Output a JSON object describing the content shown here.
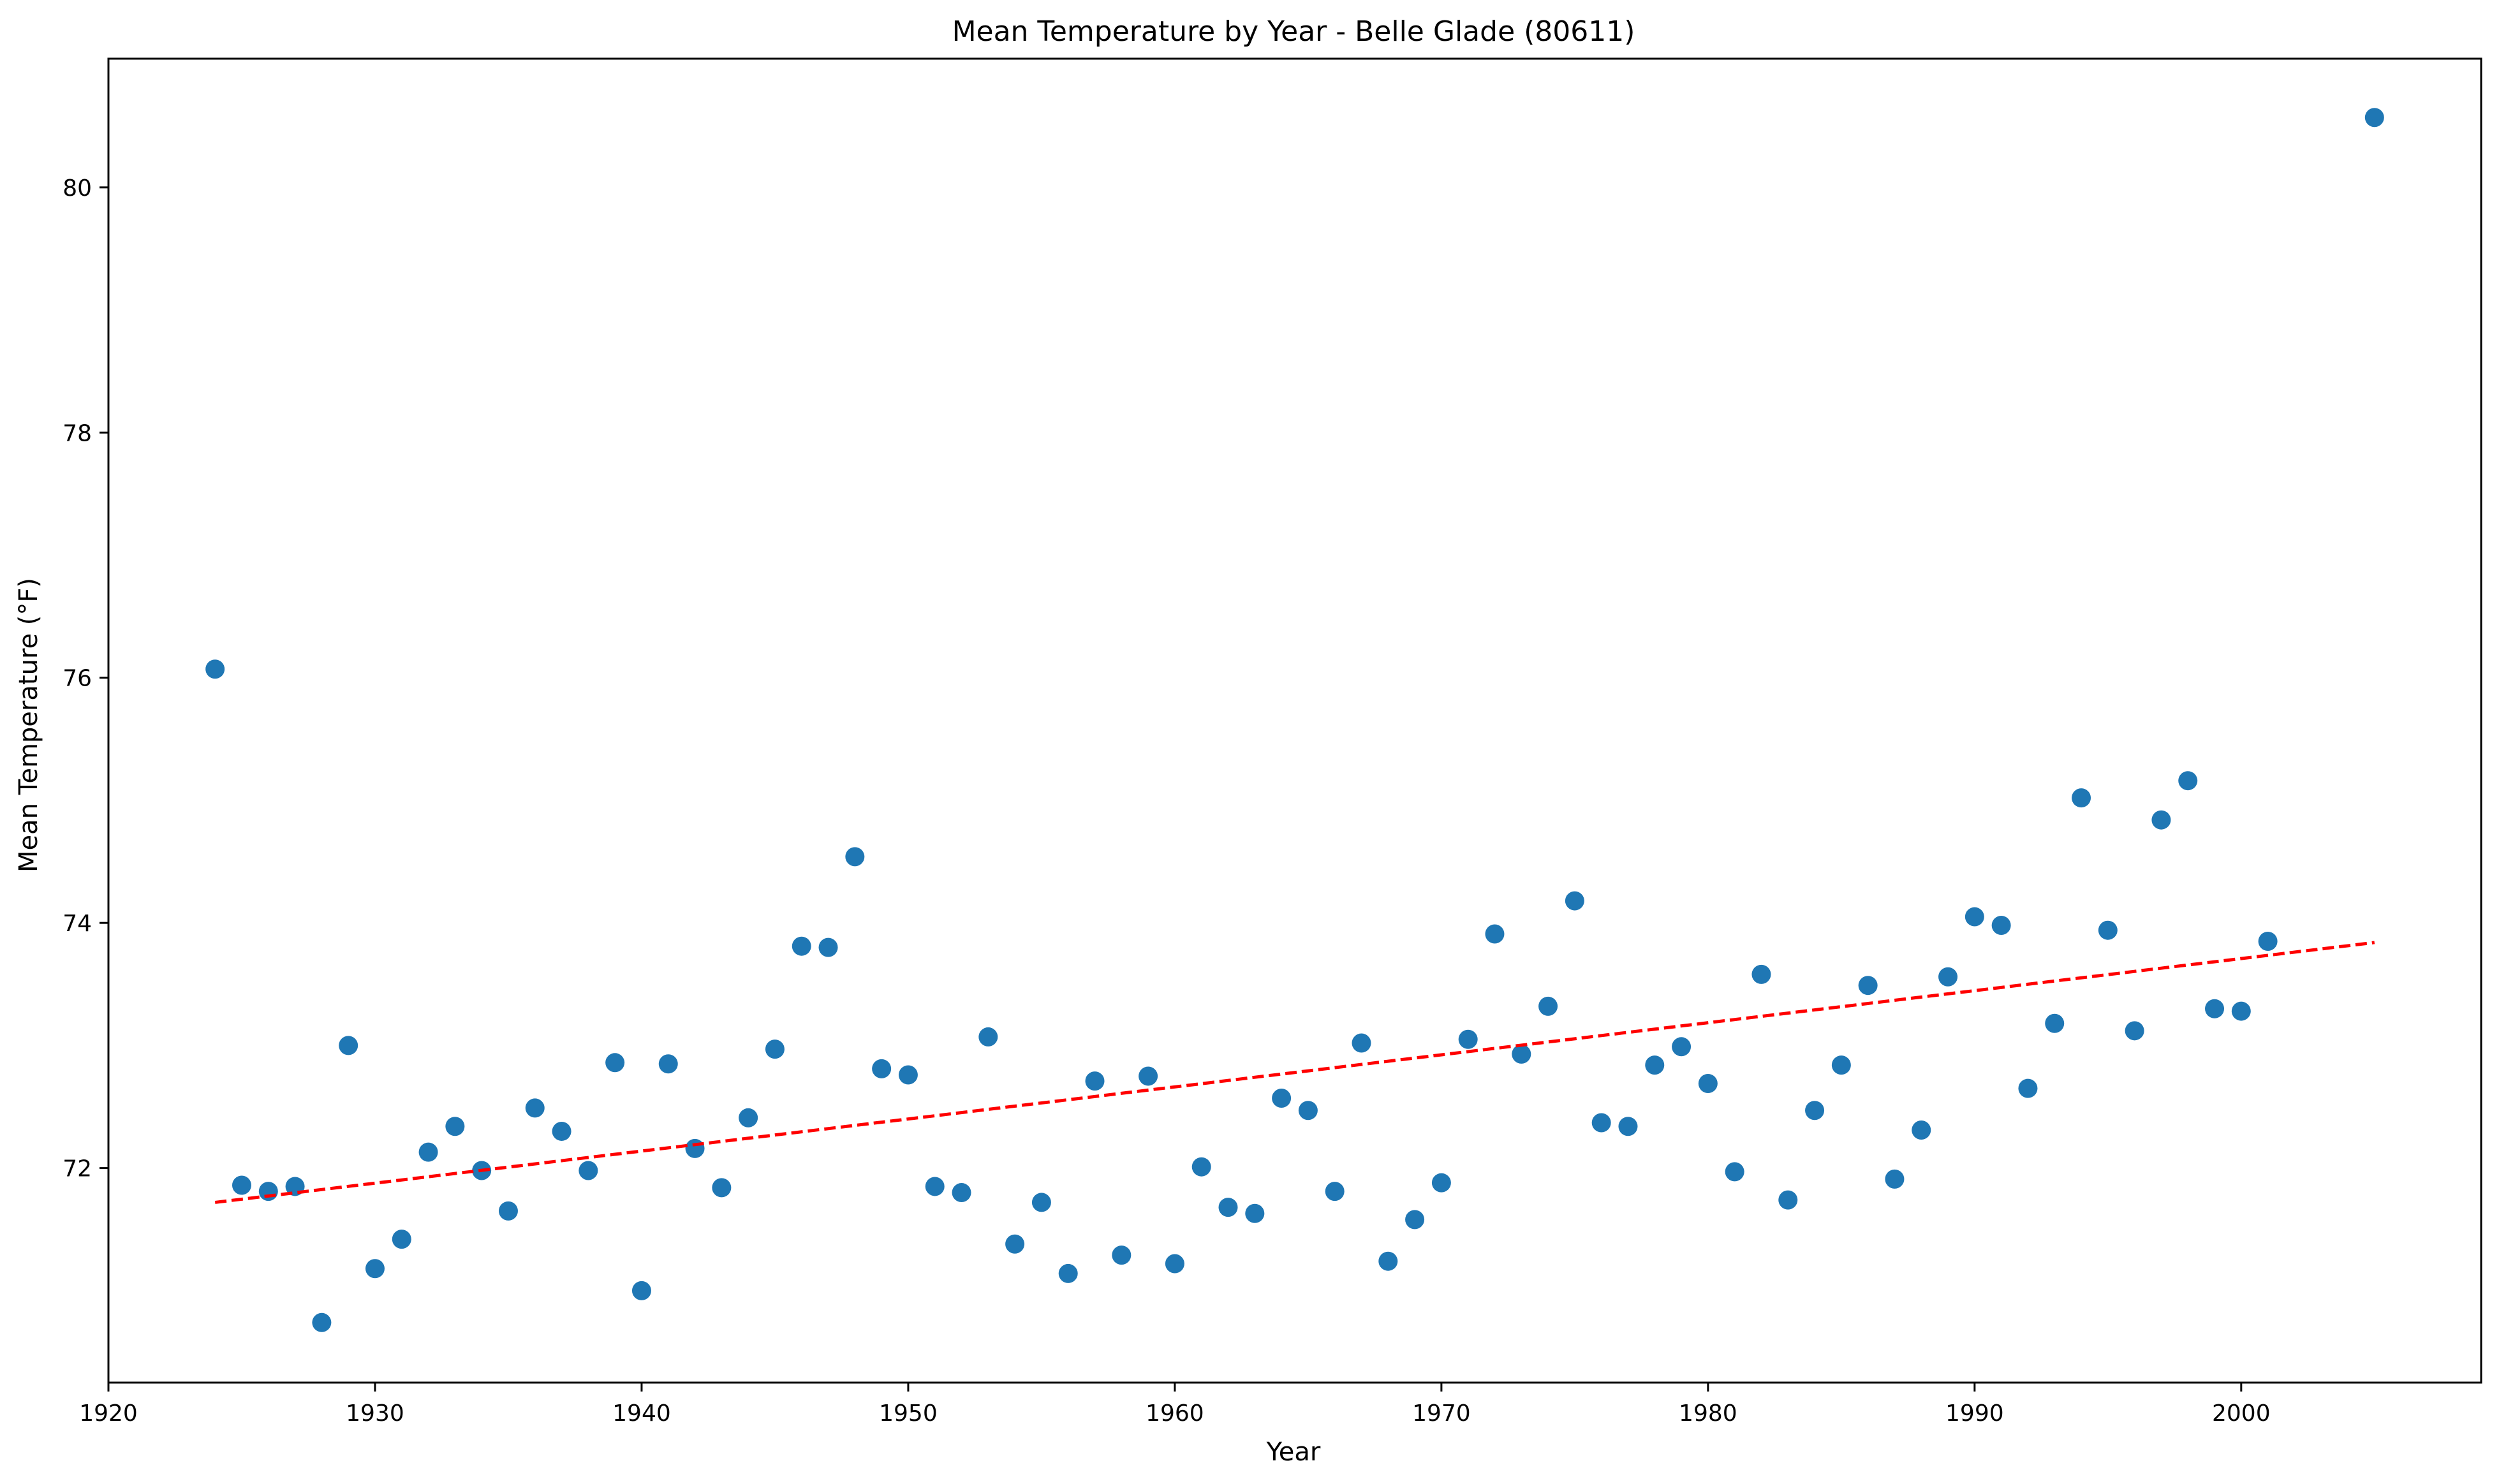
{
  "chart_data": {
    "type": "scatter",
    "title": "Mean Temperature by Year - Belle Glade (80611)",
    "xlabel": "Year",
    "ylabel": "Mean Temperature (°F)",
    "xlim": [
      1920,
      2009
    ],
    "ylim": [
      70.25,
      81.05
    ],
    "xticks": [
      1920,
      1930,
      1940,
      1950,
      1960,
      1970,
      1980,
      1990,
      2000
    ],
    "yticks": [
      72,
      74,
      76,
      78,
      80
    ],
    "grid": false,
    "series": [
      {
        "color": "#1f77b4",
        "points": [
          [
            1924,
            76.07
          ],
          [
            1925,
            71.86
          ],
          [
            1926,
            71.81
          ],
          [
            1927,
            71.85
          ],
          [
            1928,
            70.74
          ],
          [
            1929,
            73.0
          ],
          [
            1930,
            71.18
          ],
          [
            1931,
            71.42
          ],
          [
            1932,
            72.13
          ],
          [
            1933,
            72.34
          ],
          [
            1934,
            71.98
          ],
          [
            1935,
            71.65
          ],
          [
            1936,
            72.49
          ],
          [
            1937,
            72.3
          ],
          [
            1938,
            71.98
          ],
          [
            1939,
            72.86
          ],
          [
            1940,
            71.0
          ],
          [
            1941,
            72.85
          ],
          [
            1942,
            72.16
          ],
          [
            1943,
            71.84
          ],
          [
            1944,
            72.41
          ],
          [
            1945,
            72.97
          ],
          [
            1946,
            73.81
          ],
          [
            1947,
            73.8
          ],
          [
            1948,
            74.54
          ],
          [
            1949,
            72.81
          ],
          [
            1950,
            72.76
          ],
          [
            1951,
            71.85
          ],
          [
            1952,
            71.8
          ],
          [
            1953,
            73.07
          ],
          [
            1954,
            71.38
          ],
          [
            1955,
            71.72
          ],
          [
            1956,
            71.14
          ],
          [
            1957,
            72.71
          ],
          [
            1958,
            71.29
          ],
          [
            1959,
            72.75
          ],
          [
            1960,
            71.22
          ],
          [
            1961,
            72.01
          ],
          [
            1962,
            71.68
          ],
          [
            1963,
            71.63
          ],
          [
            1964,
            72.57
          ],
          [
            1965,
            72.47
          ],
          [
            1966,
            71.81
          ],
          [
            1967,
            73.02
          ],
          [
            1968,
            71.24
          ],
          [
            1969,
            71.58
          ],
          [
            1970,
            71.88
          ],
          [
            1971,
            73.05
          ],
          [
            1972,
            73.91
          ],
          [
            1973,
            72.93
          ],
          [
            1974,
            73.32
          ],
          [
            1975,
            74.18
          ],
          [
            1976,
            72.37
          ],
          [
            1977,
            72.34
          ],
          [
            1978,
            72.84
          ],
          [
            1979,
            72.99
          ],
          [
            1980,
            72.69
          ],
          [
            1981,
            71.97
          ],
          [
            1982,
            73.58
          ],
          [
            1983,
            71.74
          ],
          [
            1984,
            72.47
          ],
          [
            1985,
            72.84
          ],
          [
            1986,
            73.49
          ],
          [
            1987,
            71.91
          ],
          [
            1988,
            72.31
          ],
          [
            1989,
            73.56
          ],
          [
            1990,
            74.05
          ],
          [
            1991,
            73.98
          ],
          [
            1992,
            72.65
          ],
          [
            1993,
            73.18
          ],
          [
            1994,
            75.02
          ],
          [
            1995,
            73.94
          ],
          [
            1996,
            73.12
          ],
          [
            1997,
            74.84
          ],
          [
            1998,
            75.16
          ],
          [
            1999,
            73.3
          ],
          [
            2000,
            73.28
          ],
          [
            2001,
            73.85
          ],
          [
            2005,
            80.57
          ]
        ]
      }
    ],
    "trendline": {
      "color": "#ff0000",
      "style": "dashed",
      "x": [
        1924,
        2005
      ],
      "y": [
        71.72,
        73.84
      ]
    }
  }
}
